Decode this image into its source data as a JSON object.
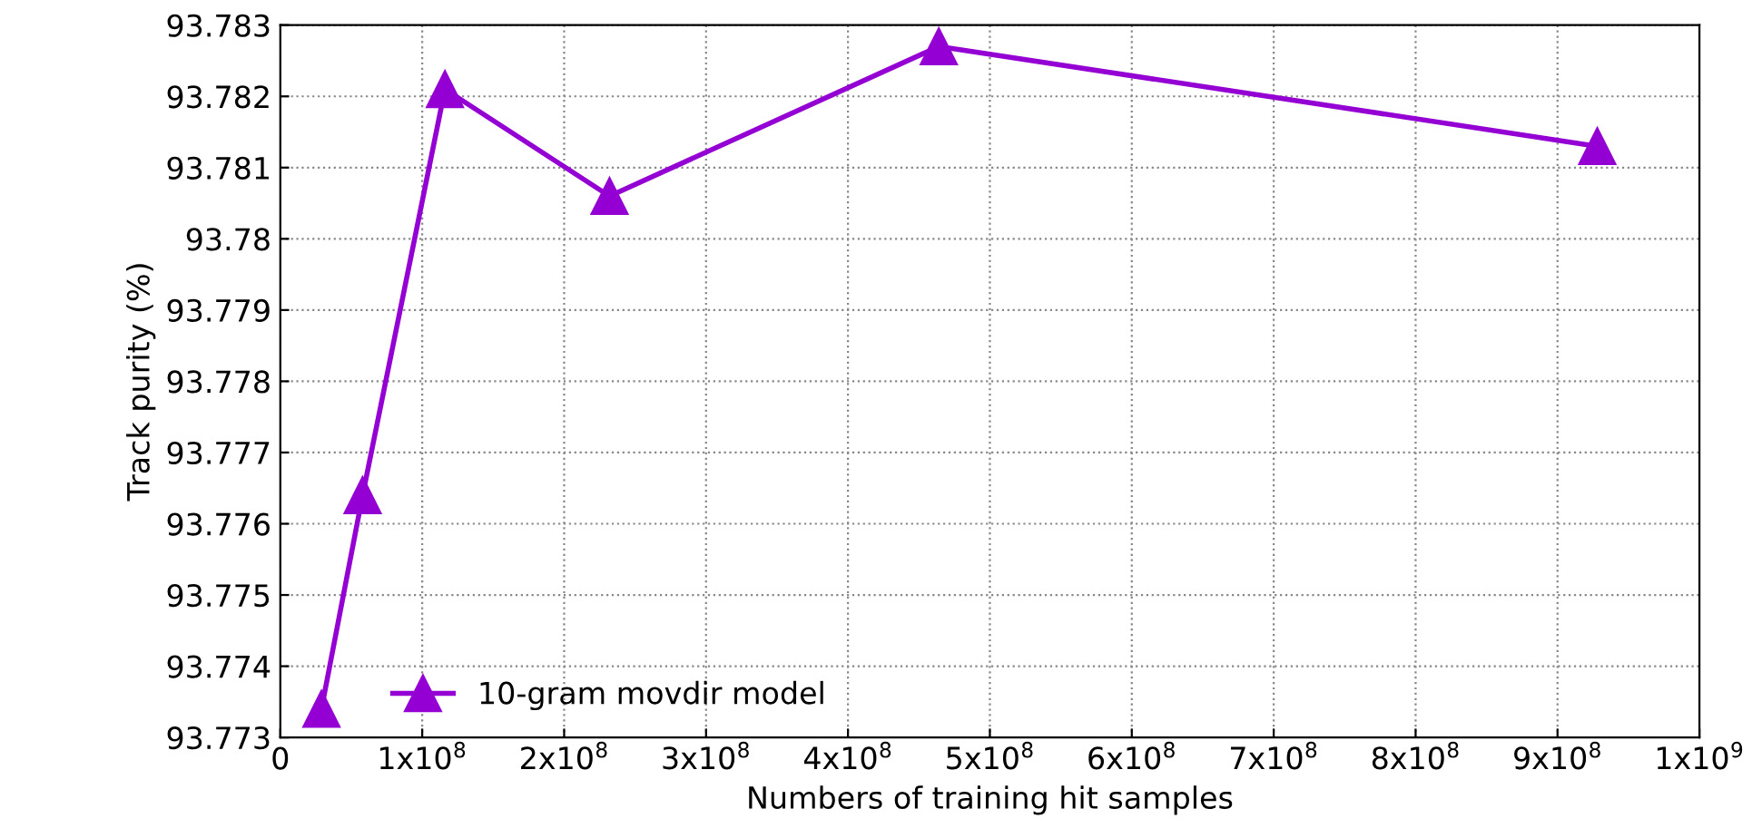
{
  "chart_data": {
    "type": "line",
    "xlabel": "Numbers of training hit samples",
    "ylabel": "Track purity (%)",
    "x": [
      29000000.0,
      58000000.0,
      116000000.0,
      232000000.0,
      464000000.0,
      928000000.0
    ],
    "series": [
      {
        "name": "10-gram movdir model",
        "color": "#9400d3",
        "values": [
          93.7734,
          93.7764,
          93.7821,
          93.7806,
          93.7827,
          93.7813
        ]
      }
    ],
    "xlim": [
      0,
      1000000000.0
    ],
    "xticks": [
      0,
      {
        "value": 100000000.0,
        "label": "1x10$^{8}$"
      },
      {
        "value": 200000000.0,
        "label": "2x10$^{8}$"
      },
      {
        "value": 300000000.0,
        "label": "3x10$^{8}$"
      },
      {
        "value": 400000000.0,
        "label": "4x10$^{8}$"
      },
      {
        "value": 500000000.0,
        "label": "5x10$^{8}$"
      },
      {
        "value": 600000000.0,
        "label": "6x10$^{8}$"
      },
      {
        "value": 700000000.0,
        "label": "7x10$^{8}$"
      },
      {
        "value": 800000000.0,
        "label": "8x10$^{8}$"
      },
      {
        "value": 900000000.0,
        "label": "9x10$^{8}$"
      },
      {
        "value": 1000000000.0,
        "label": "1x10$^{9}$"
      }
    ],
    "ylim": [
      93.773,
      93.783
    ],
    "yticks": [
      93.773,
      93.774,
      93.775,
      93.776,
      93.777,
      93.778,
      93.779,
      93.78,
      93.781,
      93.782,
      93.783
    ],
    "grid": true,
    "legend": "bottom left",
    "marker": "triangle",
    "line_style": "solid"
  }
}
